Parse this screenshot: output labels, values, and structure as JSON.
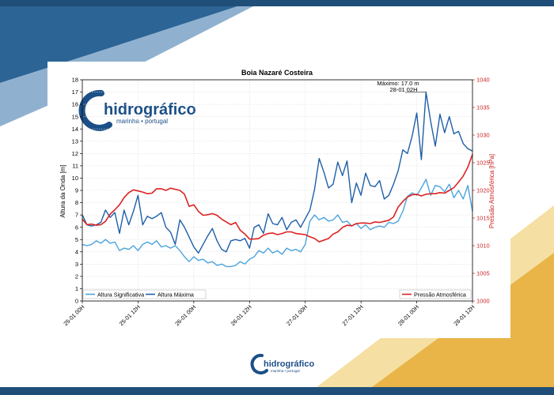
{
  "logo": {
    "name": "hidrográfico",
    "subtitle": "marinha • portugal"
  },
  "colors": {
    "top_band": "#1f4e79",
    "bottom_band": "#1f4e79",
    "swoosh_dark": "#2c6496",
    "swoosh_light": "#8fb1cf",
    "gold": "#e9b548",
    "gold_light": "#f5dfa3",
    "hs_color": "#4ba3dc",
    "hmax_color": "#1f5fa8",
    "press_color": "#dd2222",
    "press_axis_color": "#cc2222",
    "logo_blue": "#1c4f88"
  },
  "chart_data": {
    "type": "line",
    "title": "Boia Nazaré Costeira",
    "ylabel": "Altura da Onda [m]",
    "y2label": "Pressão Atmosférica [hPa]",
    "ylim": [
      0,
      18
    ],
    "y2lim": [
      1000,
      1040
    ],
    "yticks": [
      "0",
      "1",
      "2",
      "3",
      "4",
      "5",
      "6",
      "7",
      "8",
      "9",
      "10",
      "11",
      "12",
      "13",
      "14",
      "15",
      "16",
      "17",
      "18"
    ],
    "y2ticks": [
      "1000",
      "1005",
      "1010",
      "1015",
      "1020",
      "1025",
      "1030",
      "1035",
      "1040"
    ],
    "xlim": [
      0,
      84
    ],
    "xticks": [
      {
        "x": 0,
        "label": "25-01 00H"
      },
      {
        "x": 12,
        "label": "25-01 12H"
      },
      {
        "x": 24,
        "label": "26-01 00H"
      },
      {
        "x": 36,
        "label": "26-01 12H"
      },
      {
        "x": 48,
        "label": "27-01 00H"
      },
      {
        "x": 60,
        "label": "27-01 12H"
      },
      {
        "x": 72,
        "label": "28-01 00H"
      },
      {
        "x": 84,
        "label": "28-01 12H"
      }
    ],
    "annotation": {
      "line1": "Máximo: 17.0 m",
      "line2": "28-01 02H",
      "x": 74,
      "y": 17.0
    },
    "series": [
      {
        "name": "Altura Significativa",
        "axis": "left",
        "x": [
          0,
          1,
          2,
          3,
          4,
          5,
          6,
          7,
          8,
          9,
          10,
          11,
          12,
          13,
          14,
          15,
          16,
          17,
          18,
          19,
          20,
          21,
          22,
          23,
          24,
          25,
          26,
          27,
          28,
          29,
          30,
          31,
          32,
          33,
          34,
          35,
          36,
          37,
          38,
          39,
          40,
          41,
          42,
          43,
          44,
          45,
          46,
          47,
          48,
          49,
          50,
          51,
          52,
          53,
          54,
          55,
          56,
          57,
          58,
          59,
          60,
          61,
          62,
          63,
          64,
          65,
          66,
          67,
          68,
          69,
          70,
          71,
          72,
          73,
          74,
          75,
          76,
          77,
          78,
          79,
          80,
          81,
          82,
          83,
          84
        ],
        "values": [
          4.6,
          4.5,
          4.6,
          4.9,
          4.7,
          5.0,
          4.7,
          4.8,
          4.1,
          4.3,
          4.2,
          4.5,
          4.1,
          4.6,
          4.8,
          4.6,
          4.9,
          4.4,
          4.5,
          4.3,
          4.5,
          4.1,
          3.6,
          3.2,
          3.6,
          3.3,
          3.4,
          3.1,
          3.2,
          2.9,
          3.0,
          2.8,
          2.8,
          2.9,
          3.2,
          3.0,
          3.4,
          3.6,
          4.1,
          3.9,
          4.3,
          3.9,
          4.1,
          3.8,
          4.3,
          4.1,
          4.2,
          4.0,
          4.6,
          6.5,
          7.0,
          6.6,
          6.8,
          6.5,
          6.6,
          7.0,
          6.4,
          6.5,
          6.1,
          6.3,
          5.9,
          6.2,
          5.8,
          6.0,
          6.1,
          6.0,
          6.4,
          6.3,
          6.5,
          7.3,
          8.5,
          8.8,
          8.6,
          9.2,
          9.9,
          8.6,
          9.4,
          9.3,
          8.9,
          9.5,
          8.4,
          9.0,
          8.3,
          9.4,
          7.3
        ]
      },
      {
        "name": "Altura Máxima",
        "axis": "left",
        "x": [
          0,
          1,
          2,
          3,
          4,
          5,
          6,
          7,
          8,
          9,
          10,
          11,
          12,
          13,
          14,
          15,
          16,
          17,
          18,
          19,
          20,
          21,
          22,
          23,
          24,
          25,
          26,
          27,
          28,
          29,
          30,
          31,
          32,
          33,
          34,
          35,
          36,
          37,
          38,
          39,
          40,
          41,
          42,
          43,
          44,
          45,
          46,
          47,
          48,
          49,
          50,
          51,
          52,
          53,
          54,
          55,
          56,
          57,
          58,
          59,
          60,
          61,
          62,
          63,
          64,
          65,
          66,
          67,
          68,
          69,
          70,
          71,
          72,
          73,
          74,
          75,
          76,
          77,
          78,
          79,
          80,
          81,
          82,
          83,
          84
        ],
        "values": [
          7.0,
          6.2,
          6.1,
          6.2,
          6.4,
          7.4,
          6.8,
          7.2,
          5.5,
          7.4,
          6.2,
          7.3,
          8.6,
          6.2,
          6.9,
          6.7,
          6.9,
          7.2,
          6.0,
          5.6,
          4.6,
          6.6,
          6.0,
          5.2,
          4.4,
          3.9,
          4.6,
          5.3,
          5.9,
          4.9,
          4.2,
          4.0,
          4.9,
          5.0,
          4.9,
          5.1,
          4.3,
          6.0,
          6.2,
          5.5,
          7.1,
          6.3,
          6.2,
          6.8,
          5.8,
          6.4,
          6.6,
          6.0,
          6.7,
          7.4,
          9.1,
          11.6,
          10.5,
          9.2,
          9.5,
          11.3,
          10.2,
          11.4,
          8.0,
          9.6,
          8.6,
          10.4,
          9.4,
          9.3,
          9.8,
          8.3,
          8.6,
          9.5,
          10.6,
          12.3,
          12.0,
          13.4,
          15.3,
          11.5,
          17.0,
          14.6,
          12.6,
          15.2,
          13.7,
          15.0,
          13.6,
          13.8,
          12.8,
          12.4,
          12.2
        ]
      },
      {
        "name": "Pressão Atmosférica",
        "axis": "right",
        "x": [
          0,
          1,
          2,
          3,
          4,
          5,
          6,
          7,
          8,
          9,
          10,
          11,
          12,
          13,
          14,
          15,
          16,
          17,
          18,
          19,
          20,
          21,
          22,
          23,
          24,
          25,
          26,
          27,
          28,
          29,
          30,
          31,
          32,
          33,
          34,
          35,
          36,
          37,
          38,
          39,
          40,
          41,
          42,
          43,
          44,
          45,
          46,
          47,
          48,
          49,
          50,
          51,
          52,
          53,
          54,
          55,
          56,
          57,
          58,
          59,
          60,
          61,
          62,
          63,
          64,
          65,
          66,
          67,
          68,
          69,
          70,
          71,
          72,
          73,
          74,
          75,
          76,
          77,
          78,
          79,
          80,
          81,
          82,
          83,
          84
        ],
        "values": [
          1014.8,
          1013.8,
          1013.9,
          1013.7,
          1013.8,
          1014.4,
          1015.7,
          1016.5,
          1017.4,
          1018.7,
          1019.6,
          1020.1,
          1019.9,
          1019.7,
          1019.4,
          1019.5,
          1020.3,
          1020.3,
          1020.0,
          1020.4,
          1020.2,
          1020.0,
          1019.3,
          1017.1,
          1017.4,
          1016.2,
          1015.5,
          1015.6,
          1015.8,
          1015.5,
          1014.8,
          1014.3,
          1013.8,
          1014.2,
          1012.8,
          1012.1,
          1011.2,
          1011.2,
          1011.3,
          1011.9,
          1012.2,
          1012.3,
          1012.0,
          1012.2,
          1012.5,
          1012.5,
          1012.2,
          1012.1,
          1012.0,
          1011.6,
          1011.3,
          1010.7,
          1011.0,
          1011.3,
          1012.1,
          1012.5,
          1013.3,
          1013.7,
          1013.6,
          1014.0,
          1014.1,
          1014.1,
          1014.0,
          1014.3,
          1014.2,
          1014.4,
          1014.6,
          1015.2,
          1017.0,
          1018.0,
          1018.8,
          1019.2,
          1019.3,
          1019.0,
          1019.3,
          1019.4,
          1019.4,
          1019.6,
          1019.5,
          1020.0,
          1020.5,
          1021.5,
          1022.6,
          1024.2,
          1026.5
        ]
      }
    ],
    "legend_left": [
      "Altura Significativa",
      "Altura Máxima"
    ],
    "legend_right": [
      "Pressão Atmosférica"
    ]
  }
}
